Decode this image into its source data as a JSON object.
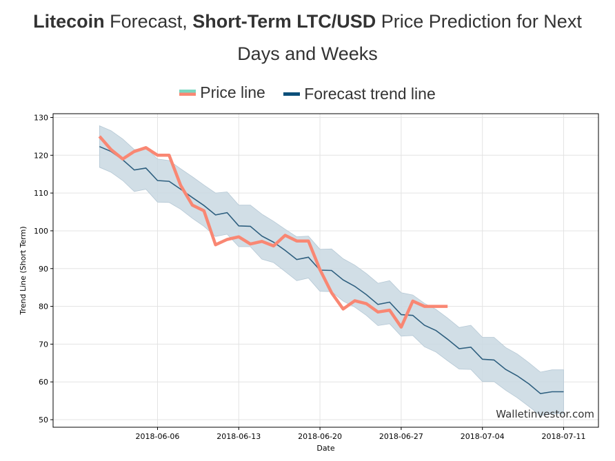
{
  "header": {
    "title_bold_1": "Litecoin",
    "title_light_1": " Forecast, ",
    "title_bold_2": "Short-Term LTC/USD",
    "title_light_2": " Price Prediction for Next",
    "title_line2": "Days and Weeks"
  },
  "legend": {
    "price_label": "Price line",
    "trend_label": "Forecast trend line"
  },
  "colors": {
    "price": "#f98773",
    "trend": "#2e5f7f",
    "band": "#c9d8e2",
    "grid": "#e3e3e3"
  },
  "chart_data": {
    "type": "line",
    "title": "Litecoin Forecast, Short-Term LTC/USD Price Prediction for Next Days and Weeks",
    "xlabel": "Date",
    "ylabel": "Trend Line (Short Term)",
    "ylim": [
      48,
      131
    ],
    "xlim": [
      -5,
      42
    ],
    "x_start_date": "2018-06-02",
    "x_ticks": [
      {
        "day": 4,
        "label": "2018-06-06"
      },
      {
        "day": 11,
        "label": "2018-06-13"
      },
      {
        "day": 18,
        "label": "2018-06-20"
      },
      {
        "day": 25,
        "label": "2018-06-27"
      },
      {
        "day": 32,
        "label": "2018-07-04"
      },
      {
        "day": 39,
        "label": "2018-07-11"
      }
    ],
    "y_ticks": [
      50,
      60,
      70,
      80,
      90,
      100,
      110,
      120,
      130
    ],
    "grid": true,
    "watermark": "Walletinvestor.com",
    "series": [
      {
        "name": "Price line",
        "x": [
          -1,
          0,
          1,
          2,
          3,
          4,
          5,
          6,
          7,
          8,
          9,
          10,
          11,
          12,
          13,
          14,
          15,
          16,
          17,
          18,
          19,
          20,
          21,
          22,
          23,
          24,
          25,
          26,
          27,
          28,
          29
        ],
        "values": [
          125,
          121.5,
          119,
          121,
          122,
          120,
          120,
          112,
          106.8,
          105.3,
          96.3,
          97.7,
          98.4,
          96.5,
          97.2,
          96,
          98.8,
          97.3,
          97.3,
          89.7,
          83.6,
          79.3,
          81.5,
          80.7,
          78.5,
          79,
          74.5,
          81.4,
          80,
          80,
          80
        ]
      },
      {
        "name": "Forecast trend line",
        "x": [
          -1,
          0,
          1,
          2,
          3,
          4,
          5,
          6,
          7,
          8,
          9,
          10,
          11,
          12,
          13,
          14,
          15,
          16,
          17,
          18,
          19,
          20,
          21,
          22,
          23,
          24,
          25,
          26,
          27,
          28,
          29,
          30,
          31,
          32,
          33,
          34,
          35,
          36,
          37,
          38,
          39
        ],
        "values": [
          122.3,
          121,
          118.8,
          116.1,
          116.6,
          113.3,
          113.1,
          111,
          108.8,
          106.7,
          104.2,
          104.8,
          101.3,
          101.2,
          98.6,
          97,
          94.8,
          92.4,
          93,
          89.6,
          89.5,
          87,
          85.3,
          83.1,
          80.5,
          81.1,
          77.8,
          77.6,
          75,
          73.6,
          71.3,
          68.8,
          69.2,
          66,
          65.8,
          63.3,
          61.6,
          59.5,
          56.9,
          57.4,
          57.4
        ]
      }
    ],
    "band": {
      "name": "Forecast range",
      "x": [
        -1,
        0,
        1,
        2,
        3,
        4,
        5,
        6,
        7,
        8,
        9,
        10,
        11,
        12,
        13,
        14,
        15,
        16,
        17,
        18,
        19,
        20,
        21,
        22,
        23,
        24,
        25,
        26,
        27,
        28,
        29,
        30,
        31,
        32,
        33,
        34,
        35,
        36,
        37,
        38,
        39
      ],
      "upper": [
        127.8,
        126.5,
        124.3,
        121.5,
        122,
        119,
        118.6,
        116.4,
        114.3,
        112.1,
        110,
        110.3,
        106.8,
        106.8,
        104.4,
        102.5,
        100.4,
        98.4,
        98.6,
        95.1,
        95.2,
        92.6,
        90.9,
        88.7,
        86.1,
        86.8,
        83.6,
        83,
        80.8,
        79.2,
        76.9,
        74.4,
        75,
        71.8,
        71.8,
        69.1,
        67.4,
        65.1,
        62.6,
        63.2,
        63.2
      ],
      "lower": [
        116.8,
        115.5,
        113.3,
        110.4,
        111,
        107.6,
        107.5,
        105.7,
        103.3,
        101.2,
        98.5,
        99.1,
        95.8,
        95.8,
        92.5,
        91.6,
        89.2,
        86.8,
        87.5,
        84,
        83.9,
        81.4,
        79.8,
        77.6,
        74.9,
        75.4,
        72.1,
        72.3,
        69.3,
        67.9,
        65.6,
        63.4,
        63.3,
        60.1,
        60.1,
        57.8,
        55.8,
        53.5,
        51.1,
        51.6,
        51.6
      ]
    }
  }
}
